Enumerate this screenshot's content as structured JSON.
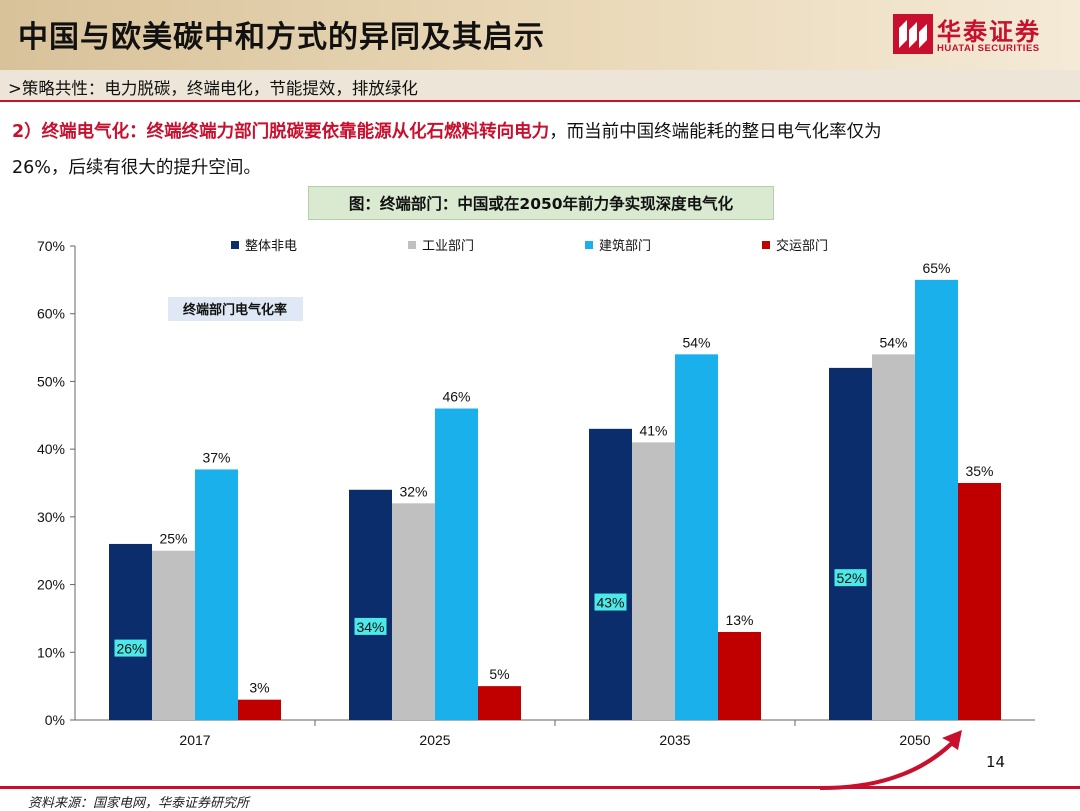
{
  "header": {
    "title": "中国与欧美碳中和方式的异同及其启示",
    "logo_cn": "华泰证券",
    "logo_en": "HUATAI SECURITIES"
  },
  "strategy": {
    "text": ">策略共性：电力脱碳，终端电化，节能提效，排放绿化"
  },
  "body": {
    "lead_red": "2）终端电气化：终端终端力部门脱碳要依靠能源从化石燃料转向电力",
    "lead_black": "，而当前中国终端能耗的整日电气化率仅为",
    "line2": "26%，后续有很大的提升空间。"
  },
  "figure_caption": "图：终端部门：中国或在2050年前力争实现深度电气化",
  "chart_data": {
    "type": "bar",
    "categories": [
      "2017",
      "2025",
      "2035",
      "2050"
    ],
    "series": [
      {
        "name": "整体非电",
        "values": [
          26,
          34,
          43,
          52
        ],
        "color": "#0c2d6b",
        "labels": [
          "26%",
          "34%",
          "43%",
          "52%"
        ]
      },
      {
        "name": "工业部门",
        "values": [
          25,
          32,
          41,
          54
        ],
        "color": "#c0c0c0",
        "labels": [
          "25%",
          "32%",
          "41%",
          "54%"
        ]
      },
      {
        "name": "建筑部门",
        "values": [
          37,
          46,
          54,
          65
        ],
        "color": "#19b0ec",
        "labels": [
          "37%",
          "46%",
          "54%",
          "65%"
        ]
      },
      {
        "name": "交运部门",
        "values": [
          3,
          5,
          13,
          35
        ],
        "color": "#c00000",
        "labels": [
          "3%",
          "5%",
          "13%",
          "35%"
        ]
      }
    ],
    "ylim": [
      0,
      70
    ],
    "yticks": [
      "0%",
      "10%",
      "20%",
      "30%",
      "40%",
      "50%",
      "60%",
      "70%"
    ],
    "annotation": "终端部门电气化率",
    "grid": false,
    "legend_position": "top"
  },
  "source": "资料来源：国家电网，华泰证券研究所",
  "page_number": "14",
  "colors": {
    "brand_red": "#c8102e",
    "header_gold": "#d8c29a",
    "highlight_cyan": "#4de8e8"
  }
}
